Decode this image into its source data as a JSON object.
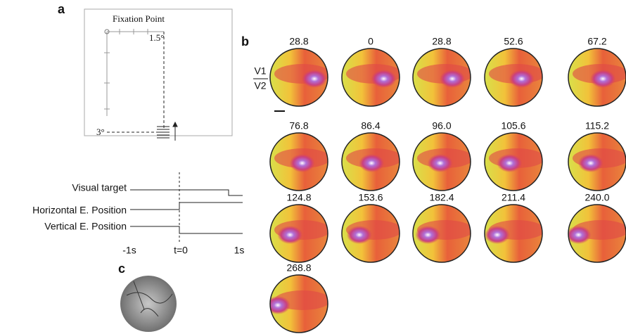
{
  "panel_a": {
    "letter": "a",
    "title": "Fixation Point",
    "small_angle": "1.5°",
    "large_angle": "3°",
    "traces": [
      "Visual target",
      "Horizontal E. Position",
      "Vertical E. Position"
    ],
    "time_labels": [
      "-1s",
      "t=0",
      "1s"
    ]
  },
  "panel_b": {
    "letter": "b",
    "area_labels": [
      "V1",
      "V2"
    ],
    "frames": [
      "28.8",
      "0",
      "28.8",
      "52.6",
      "67.2",
      "76.8",
      "86.4",
      "96.0",
      "105.6",
      "115.2",
      "124.8",
      "153.6",
      "182.4",
      "211.4",
      "240.0",
      "268.8"
    ]
  },
  "panel_c": {
    "letter": "c"
  }
}
